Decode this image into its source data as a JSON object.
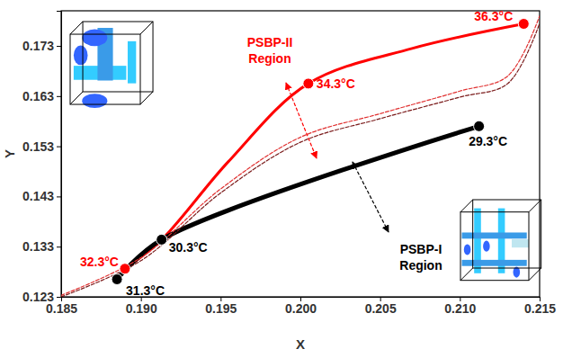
{
  "chart_data": {
    "type": "line",
    "xlabel": "X",
    "ylabel": "Y",
    "xlim": [
      0.185,
      0.215
    ],
    "xticks": [
      0.185,
      {
        "value": 0.19,
        "label": "0.190"
      },
      0.195,
      {
        "value": 0.2,
        "label": "0.200"
      },
      0.205,
      {
        "value": 0.21,
        "label": "0.210"
      },
      0.215
    ],
    "ylim": [
      0.123,
      0.18
    ],
    "yticks": [
      0.123,
      0.133,
      0.143,
      0.153,
      0.163,
      0.173
    ],
    "grid": false,
    "data_labels": true,
    "series": [
      {
        "color": "#ff0000",
        "line_style": "solid",
        "marker": "circle",
        "x": [
          0.189,
          0.1913,
          0.1955,
          0.2005,
          0.207,
          0.214
        ],
        "values": [
          0.1286,
          0.1344,
          0.15,
          0.1655,
          0.1725,
          0.1774
        ],
        "point_labels": [
          "32.3°C",
          null,
          null,
          "34.3°C",
          null,
          "36.3°C"
        ]
      },
      {
        "color": "#000000",
        "line_style": "solid",
        "marker": "circle",
        "x": [
          0.2112,
          0.1913,
          0.1885
        ],
        "values": [
          0.157,
          0.1344,
          0.1265
        ],
        "point_labels": [
          "29.3°C",
          "30.3°C",
          "31.3°C"
        ]
      },
      {
        "color": "#e03030",
        "line_style": "dashed",
        "x": [
          0.185,
          0.19,
          0.195,
          0.2,
          0.205,
          0.21,
          0.213,
          0.215
        ],
        "values": [
          0.1233,
          0.1308,
          0.1445,
          0.1548,
          0.1595,
          0.164,
          0.167,
          0.179
        ]
      },
      {
        "color": "#7a1a1a",
        "line_style": "dashed",
        "x": [
          0.185,
          0.19,
          0.195,
          0.2,
          0.205,
          0.21,
          0.213,
          0.215
        ],
        "values": [
          0.123,
          0.1302,
          0.1437,
          0.1538,
          0.1585,
          0.1628,
          0.1655,
          0.1775
        ]
      }
    ],
    "annotations": [
      {
        "text": "PSBP-II Region",
        "color": "#ff0000"
      },
      {
        "text": "PSBP-I Region",
        "color": "#000000"
      }
    ]
  }
}
